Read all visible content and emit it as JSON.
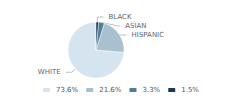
{
  "chart_data": {
    "type": "pie",
    "categories": [
      "WHITE",
      "HISPANIC",
      "ASIAN",
      "BLACK"
    ],
    "values": [
      73.6,
      21.6,
      3.3,
      1.5
    ],
    "value_labels": [
      "73.6%",
      "21.6%",
      "3.3%",
      "1.5%"
    ],
    "colors": [
      "#d6e4ef",
      "#a8c0d0",
      "#4e7d9a",
      "#1b3a52"
    ],
    "legend": "bottom"
  }
}
